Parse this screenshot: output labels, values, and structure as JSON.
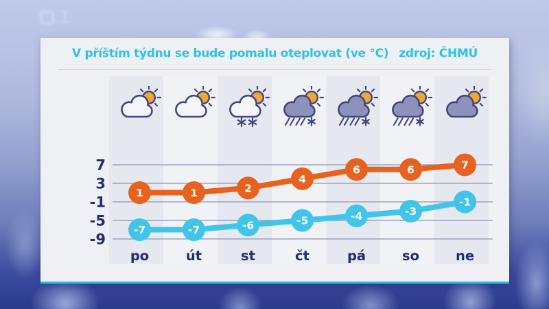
{
  "watermark": {
    "digit": "1",
    "channel": "ČT1"
  },
  "header": {
    "title": "V příštím týdnu se bude pomalu oteplovat (ve °C)",
    "source": "zdroj: ČHMÚ"
  },
  "days": [
    {
      "label": "po",
      "icon": "partly-cloudy",
      "type": "sun-cloud"
    },
    {
      "label": "út",
      "icon": "partly-cloudy",
      "type": "sun-cloud"
    },
    {
      "label": "st",
      "icon": "snow-showers",
      "type": "sun-cloud-snow"
    },
    {
      "label": "čt",
      "icon": "sleet-showers",
      "type": "sun-darkcloud-sleet"
    },
    {
      "label": "pá",
      "icon": "sleet-showers",
      "type": "sun-darkcloud-sleet"
    },
    {
      "label": "so",
      "icon": "sleet-showers",
      "type": "sun-darkcloud-sleet"
    },
    {
      "label": "ne",
      "icon": "mostly-cloudy",
      "type": "sun-darkcloud"
    }
  ],
  "chart_data": {
    "type": "line",
    "title": "V příštím týdnu se bude pomalu oteplovat (ve °C)",
    "source": "zdroj: ČHMÚ",
    "categories": [
      "po",
      "út",
      "st",
      "čt",
      "pá",
      "so",
      "ne"
    ],
    "series": [
      {
        "name": "daily maximum",
        "color": "#e7621f",
        "values": [
          1,
          1,
          2,
          4,
          6,
          6,
          7
        ]
      },
      {
        "name": "daily minimum",
        "color": "#41c4ea",
        "values": [
          -7,
          -7,
          -6,
          -5,
          -4,
          -3,
          -1
        ]
      }
    ],
    "yticks": [
      7,
      3,
      -1,
      -5,
      -9
    ],
    "ylim": [
      -9,
      7
    ],
    "grid": true,
    "point_labels": true,
    "legend": "none"
  },
  "colors": {
    "accent": "#2fc1e6",
    "navy": "#242f6e",
    "grid": "#8d94b5",
    "panel": "#eef0f4",
    "panel_border": "#27bfe3",
    "sun": "#f2a637",
    "cloud_light": "#f5f6fa",
    "cloud_dark": "#8e91bb",
    "icon_outline": "#43477d"
  }
}
